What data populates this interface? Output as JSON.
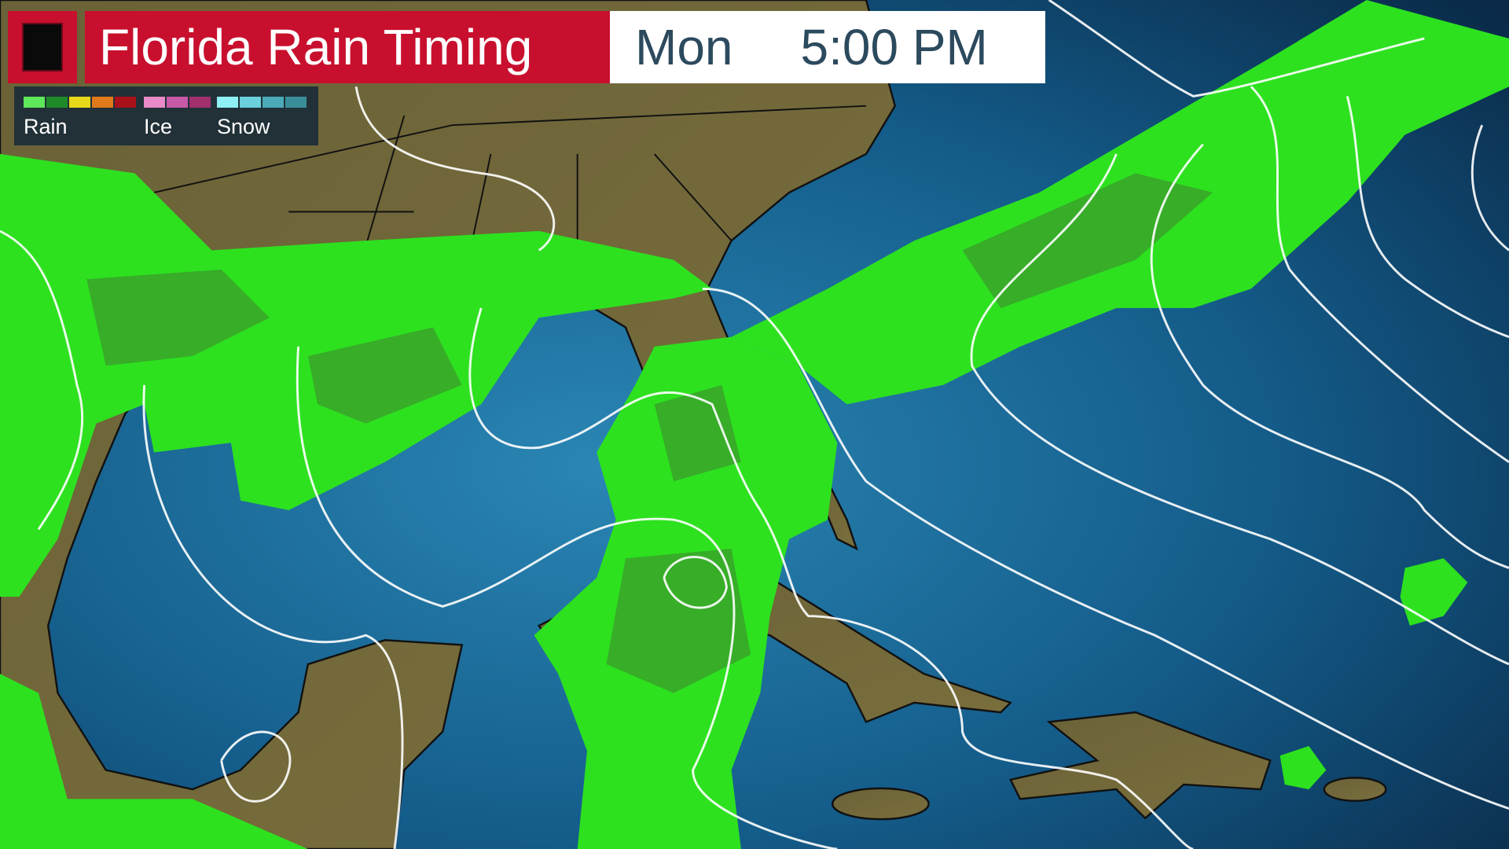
{
  "header": {
    "title": "Florida Rain Timing",
    "day": "Mon",
    "time": "5:00 PM",
    "logo_icon": "black-square-logo-icon"
  },
  "legend": {
    "items": [
      {
        "label": "Rain",
        "colors": [
          "#5ee85a",
          "#1f8a2a",
          "#e8d81a",
          "#e07a1a",
          "#a8101a"
        ]
      },
      {
        "label": "Ice",
        "colors": [
          "#e88ac8",
          "#c858a8",
          "#a0306e"
        ]
      },
      {
        "label": "Snow",
        "colors": [
          "#8ef0f4",
          "#6ad0dc",
          "#4aaab8",
          "#3a8e9a"
        ]
      }
    ]
  },
  "colors": {
    "brand_red": "#c8102e",
    "ocean": "#1a6a98",
    "land": "#6e6a3a",
    "rain_light": "#2de11f",
    "rain_moderate": "#3aa02a",
    "isobar": "#ffffff"
  }
}
